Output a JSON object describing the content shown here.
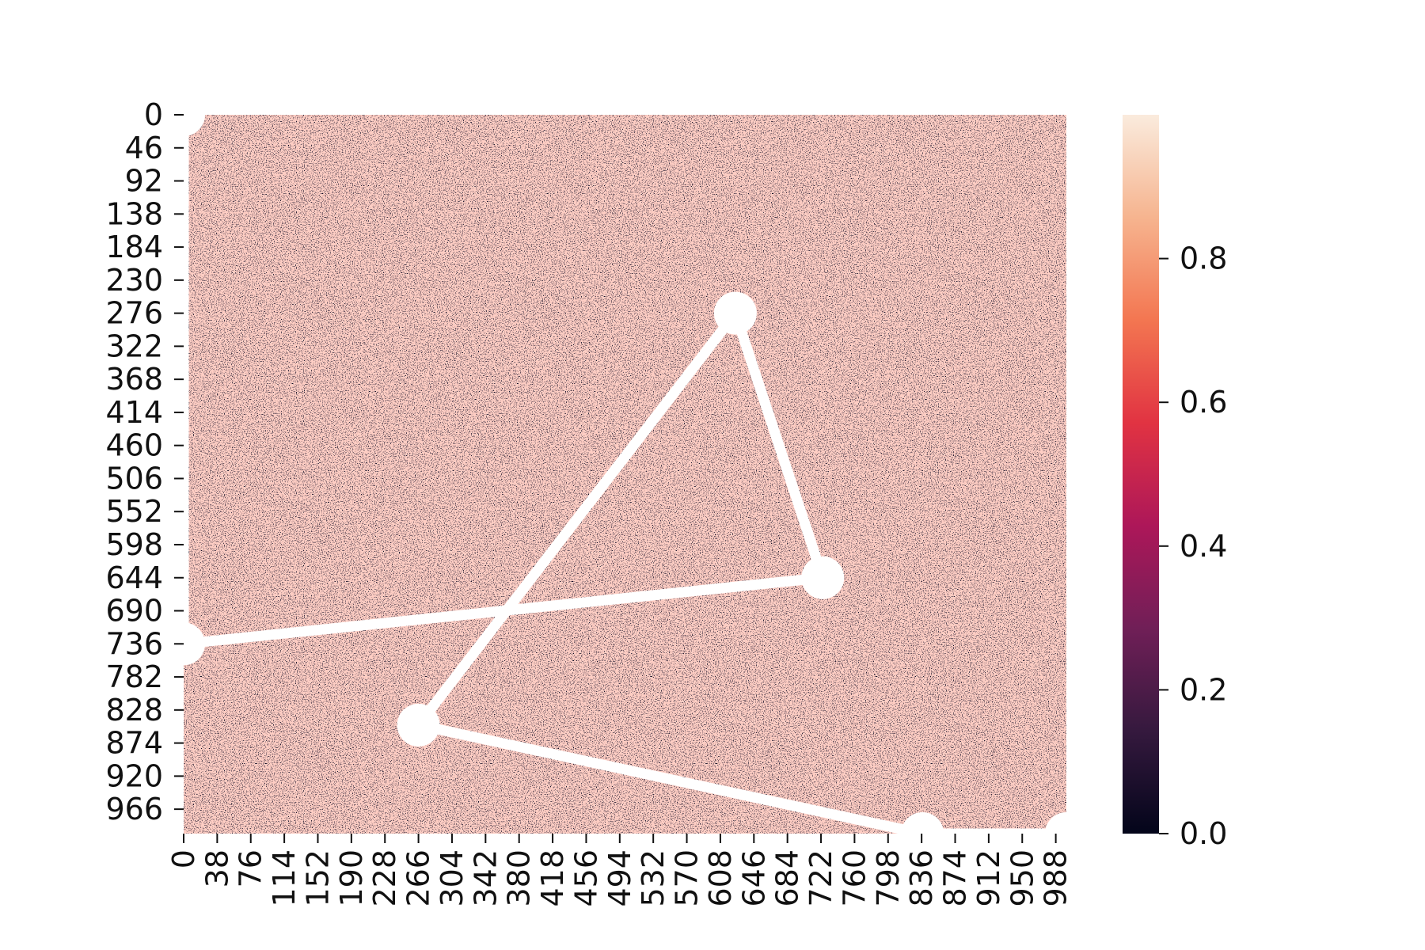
{
  "chart_data": {
    "type": "heatmap",
    "title": "",
    "xlabel": "",
    "ylabel": "",
    "grid": false,
    "n_rows": 1000,
    "n_cols": 1000,
    "xlim": [
      0,
      1000
    ],
    "ylim": [
      1000,
      0
    ],
    "x_tick_values": [
      0,
      38,
      76,
      114,
      152,
      190,
      228,
      266,
      304,
      342,
      380,
      418,
      456,
      494,
      532,
      570,
      608,
      646,
      684,
      722,
      760,
      798,
      836,
      874,
      912,
      950,
      988
    ],
    "y_tick_values": [
      0,
      46,
      92,
      138,
      184,
      230,
      276,
      322,
      368,
      414,
      460,
      506,
      552,
      598,
      644,
      690,
      736,
      782,
      828,
      874,
      920,
      966
    ],
    "colorbar": {
      "colormap": "rocket",
      "vmin": 0.0,
      "vmax": 1.0,
      "tick_values": [
        0.0,
        0.2,
        0.4,
        0.6,
        0.8
      ],
      "tick_labels": [
        "0.0",
        "0.2",
        "0.4",
        "0.6",
        "0.8"
      ],
      "colors": [
        "#03051a",
        "#35193e",
        "#701f57",
        "#ad1759",
        "#e13342",
        "#f37651",
        "#f6b48f",
        "#faebdd"
      ]
    },
    "background_color": "#0d0a22",
    "overlay_path": {
      "color": "#ffffff",
      "points": [
        {
          "x": 0,
          "y": 0
        },
        {
          "x": 0,
          "y": 736
        },
        {
          "x": 724,
          "y": 644
        },
        {
          "x": 625,
          "y": 276
        },
        {
          "x": 266,
          "y": 849
        },
        {
          "x": 837,
          "y": 1000
        },
        {
          "x": 1000,
          "y": 1000
        }
      ]
    }
  }
}
